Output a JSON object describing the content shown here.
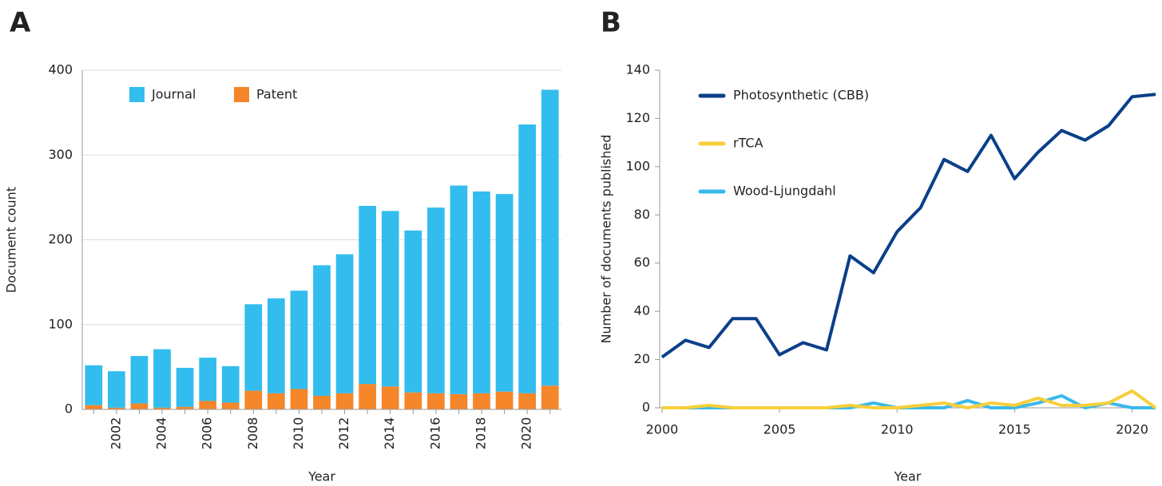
{
  "chart_data": [
    {
      "type": "stacked_bar",
      "label": "A",
      "xlabel": "Year",
      "ylabel": "Document count",
      "categories": [
        null,
        "2002",
        null,
        "2004",
        null,
        "2006",
        null,
        "2008",
        null,
        "2010",
        null,
        "2012",
        null,
        "2014",
        null,
        "2016",
        null,
        "2018",
        null,
        "2020",
        null
      ],
      "series": [
        {
          "name": "Patent",
          "color": "#f5862a",
          "values": [
            5,
            2,
            7,
            2,
            3,
            10,
            8,
            22,
            19,
            24,
            16,
            19,
            30,
            27,
            20,
            19,
            18,
            19,
            21,
            19,
            28
          ]
        },
        {
          "name": "Journal",
          "color": "#33bdee",
          "values": [
            47,
            43,
            56,
            69,
            46,
            51,
            43,
            102,
            112,
            116,
            154,
            164,
            210,
            207,
            191,
            219,
            246,
            238,
            233,
            317,
            349
          ]
        }
      ],
      "ylim": [
        0,
        400
      ],
      "yticks": [
        0,
        100,
        200,
        300,
        400
      ],
      "grid": true
    },
    {
      "type": "line",
      "label": "B",
      "xlabel": "Year",
      "ylabel": "Number of documents published",
      "x": [
        2000,
        2001,
        2002,
        2003,
        2004,
        2005,
        2006,
        2007,
        2008,
        2009,
        2010,
        2011,
        2012,
        2013,
        2014,
        2015,
        2016,
        2017,
        2018,
        2019,
        2020,
        2021
      ],
      "series": [
        {
          "name": "Photosynthetic (CBB)",
          "color": "#0b3f8a",
          "values": [
            21,
            28,
            25,
            37,
            37,
            22,
            27,
            24,
            63,
            56,
            73,
            83,
            103,
            98,
            113,
            95,
            106,
            115,
            111,
            117,
            129,
            130
          ]
        },
        {
          "name": "rTCA",
          "color": "#f7cf3a",
          "values": [
            0,
            0,
            1,
            0,
            0,
            0,
            0,
            0,
            1,
            0,
            0,
            1,
            2,
            0,
            2,
            1,
            4,
            1,
            1,
            2,
            7,
            0
          ]
        },
        {
          "name": "Wood-Ljungdahl",
          "color": "#3ab9ea",
          "values": [
            0,
            0,
            0,
            0,
            0,
            0,
            0,
            0,
            0,
            2,
            0,
            0,
            0,
            3,
            0,
            0,
            2,
            5,
            0,
            2,
            0,
            0
          ]
        }
      ],
      "xlim": [
        1999.9,
        2021
      ],
      "xticks": [
        2000,
        2005,
        2010,
        2015,
        2020
      ],
      "ylim": [
        0,
        140
      ],
      "yticks": [
        0,
        20,
        40,
        60,
        80,
        100,
        120,
        140
      ],
      "grid": false
    }
  ]
}
